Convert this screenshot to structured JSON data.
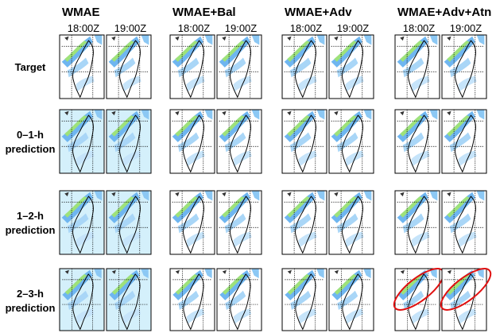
{
  "figure": {
    "column_groups": [
      {
        "title": "WMAE",
        "times": [
          "18:00Z",
          "19:00Z"
        ]
      },
      {
        "title": "WMAE+Bal",
        "times": [
          "18:00Z",
          "19:00Z"
        ]
      },
      {
        "title": "WMAE+Adv",
        "times": [
          "18:00Z",
          "19:00Z"
        ]
      },
      {
        "title": "WMAE+Adv+Atn",
        "times": [
          "18:00Z",
          "19:00Z"
        ]
      }
    ],
    "rows": [
      {
        "label": [
          "Target"
        ]
      },
      {
        "label": [
          "0–1-h",
          "prediction"
        ]
      },
      {
        "label": [
          "1–2-h",
          "prediction"
        ]
      },
      {
        "label": [
          "2–3-h",
          "prediction"
        ]
      }
    ]
  }
}
